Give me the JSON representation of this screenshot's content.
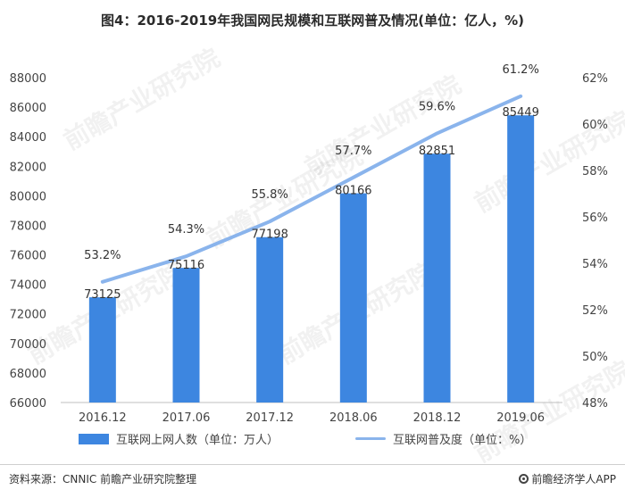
{
  "title": "图4：2016-2019年我国网民规模和互联网普及情况(单位：亿人，%)",
  "footer": {
    "source": "资料来源：CNNIC 前瞻产业研究院整理",
    "brand": "前瞻经济学人APP",
    "brand_icon": "brand-logo-icon"
  },
  "watermark": "前瞻产业研究院",
  "colors": {
    "bar": "#3d86e0",
    "line": "#8ab4ec",
    "grid": "#e6e6e6",
    "text": "#333333"
  },
  "chart_data": {
    "type": "bar",
    "categories": [
      "2016.12",
      "2017.06",
      "2017.12",
      "2018.06",
      "2018.12",
      "2019.06"
    ],
    "series": [
      {
        "name": "互联网上网人数（单位：万人）",
        "type": "bar",
        "axis": "left",
        "values": [
          73125,
          75116,
          77198,
          80166,
          82851,
          85449
        ],
        "labels": [
          "73125",
          "75116",
          "77198",
          "80166",
          "82851",
          "85449"
        ]
      },
      {
        "name": "互联网普及度（单位：%）",
        "type": "line",
        "axis": "right",
        "values": [
          53.2,
          54.3,
          55.8,
          57.7,
          59.6,
          61.2
        ],
        "labels": [
          "53.2%",
          "54.3%",
          "55.8%",
          "57.7%",
          "59.6%",
          "61.2%"
        ]
      }
    ],
    "y_left": {
      "min": 66000,
      "max": 88000,
      "step": 2000,
      "ticks": [
        "66000",
        "68000",
        "70000",
        "72000",
        "74000",
        "76000",
        "78000",
        "80000",
        "82000",
        "84000",
        "86000",
        "88000"
      ]
    },
    "y_right": {
      "min": 48,
      "max": 62,
      "step": 2,
      "ticks": [
        "48%",
        "50%",
        "52%",
        "54%",
        "56%",
        "58%",
        "60%",
        "62%"
      ]
    },
    "grid": false,
    "legend": "bottom"
  }
}
